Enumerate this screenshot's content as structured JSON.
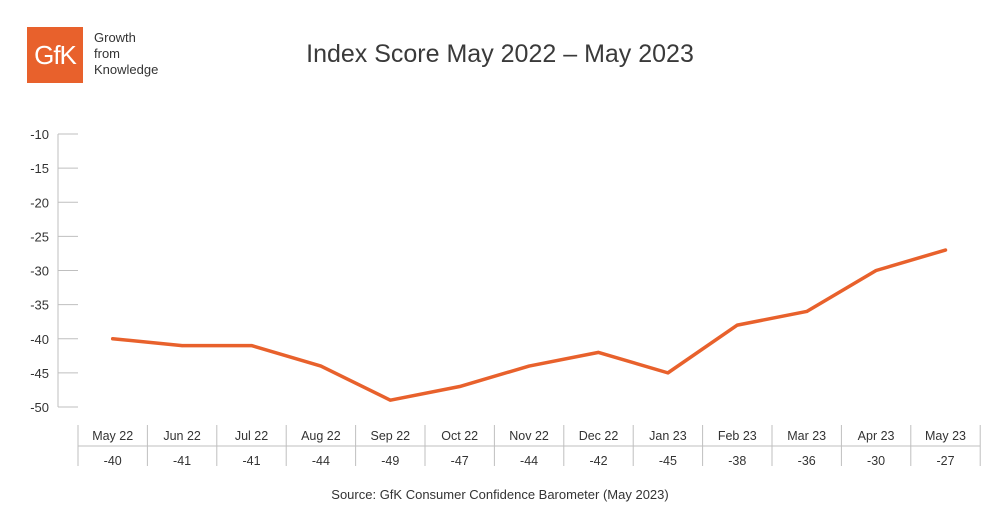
{
  "brand": {
    "logo_text": "GfK",
    "tagline": [
      "Growth",
      "from",
      "Knowledge"
    ],
    "color": "#e8612c"
  },
  "chart_data": {
    "type": "line",
    "title": "Index Score May 2022 – May 2023",
    "categories": [
      "May 22",
      "Jun 22",
      "Jul 22",
      "Aug 22",
      "Sep 22",
      "Oct 22",
      "Nov 22",
      "Dec 22",
      "Jan 23",
      "Feb 23",
      "Mar 23",
      "Apr 23",
      "May 23"
    ],
    "series": [
      {
        "values": [
          -40,
          -41,
          -41,
          -44,
          -49,
          -47,
          -44,
          -42,
          -45,
          -38,
          -36,
          -30,
          -27
        ],
        "color": "#e8612c"
      }
    ],
    "yticks": [
      -10,
      -15,
      -20,
      -25,
      -30,
      -35,
      -40,
      -45,
      -50
    ],
    "ylim": [
      -50,
      -10
    ],
    "data_table": true,
    "grid": false,
    "legend": "none"
  },
  "source": "Source: GfK Consumer Confidence Barometer (May 2023)"
}
